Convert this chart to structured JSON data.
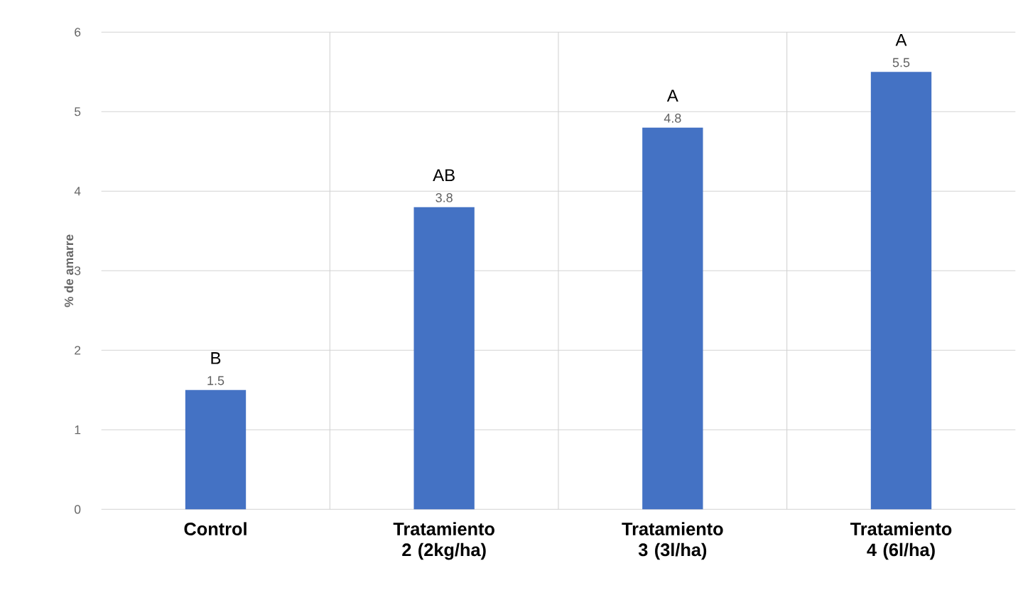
{
  "chart_data": {
    "type": "bar",
    "ylabel": "% de amarre",
    "categories": [
      "Control",
      "Tratamiento 2 (2kg/ha)",
      "Tratamiento 3 (3l/ha)",
      "Tratamiento 4 (6l/ha)"
    ],
    "values": [
      1.5,
      3.8,
      4.8,
      5.5
    ],
    "color": "#4472c4",
    "data_labels": true,
    "ylim": [
      0,
      6
    ],
    "yticks": [
      0,
      1,
      2,
      3,
      4,
      5,
      6
    ],
    "grid": true,
    "annotations": [
      {
        "text": "B",
        "x": "Control",
        "y": 1.5
      },
      {
        "text": "AB",
        "x": "Tratamiento 2 (2kg/ha)",
        "y": 3.8
      },
      {
        "text": "A",
        "x": "Tratamiento 3 (3l/ha)",
        "y": 4.8
      },
      {
        "text": "A",
        "x": "Tratamiento 4 (6l/ha)",
        "y": 5.5
      }
    ]
  }
}
